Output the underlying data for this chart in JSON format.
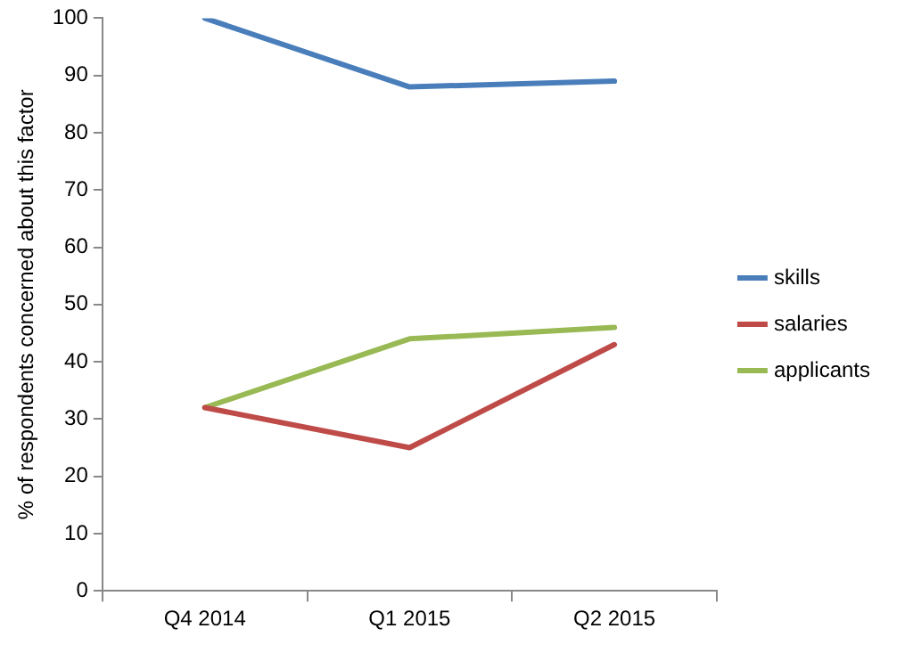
{
  "chart_data": {
    "type": "line",
    "ylabel": "% of respondents concerned about this factor",
    "categories": [
      "Q4 2014",
      "Q1 2015",
      "Q2 2015"
    ],
    "series": [
      {
        "name": "skills",
        "color": "#4a7ebb",
        "values": [
          100,
          88,
          89
        ]
      },
      {
        "name": "salaries",
        "color": "#be4b48",
        "values": [
          32,
          25,
          43
        ]
      },
      {
        "name": "applicants",
        "color": "#98b954",
        "values": [
          32,
          44,
          46
        ]
      }
    ],
    "ylim": [
      0,
      100
    ],
    "yticks": [
      0,
      10,
      20,
      30,
      40,
      50,
      60,
      70,
      80,
      90,
      100
    ],
    "grid": false,
    "legend": "right",
    "marker": "none",
    "line_style": "solid"
  }
}
